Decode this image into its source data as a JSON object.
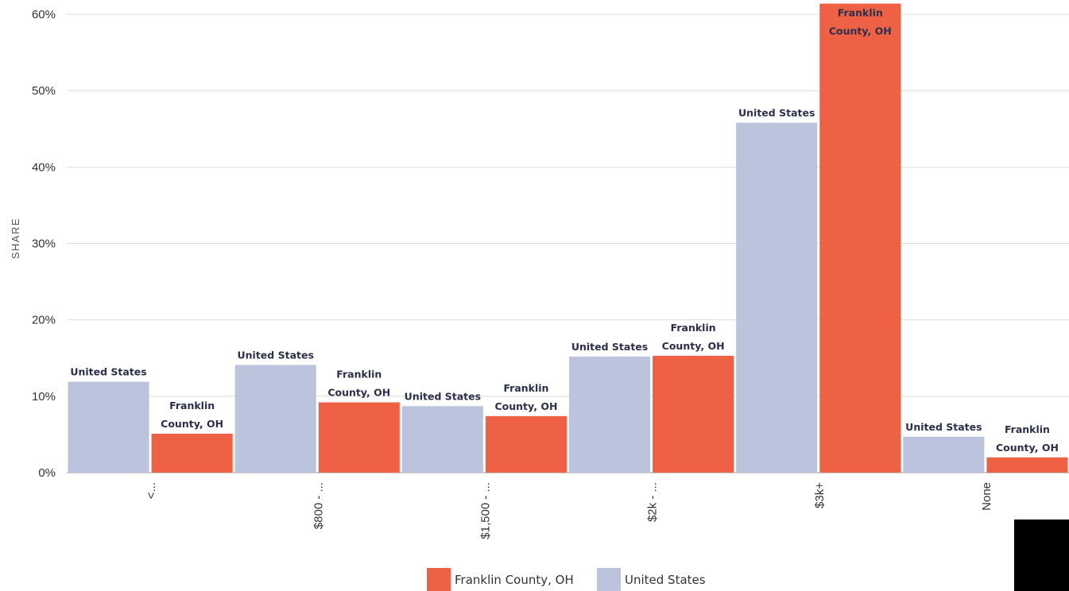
{
  "chart_data": {
    "type": "bar",
    "ylabel": "SHARE",
    "ylim": [
      0,
      60
    ],
    "yticks": [
      0,
      10,
      20,
      30,
      40,
      50,
      60
    ],
    "ytick_labels": [
      "0%",
      "10%",
      "20%",
      "30%",
      "40%",
      "50%",
      "60%"
    ],
    "grid": true,
    "legend_position": "bottom-center",
    "categories": [
      "<...",
      "$800 - ...",
      "$1,500 - ...",
      "$2k - ...",
      "$3k+",
      "None"
    ],
    "series": [
      {
        "name": "United States",
        "color": "#bcc3dc",
        "values": [
          11.9,
          14.1,
          8.7,
          15.2,
          45.8,
          4.7
        ],
        "labels": [
          "United States",
          "United States",
          "United States",
          "United States",
          "United States",
          "United States"
        ]
      },
      {
        "name": "Franklin County, OH",
        "color": "#ef6145",
        "values": [
          5.1,
          9.2,
          7.4,
          15.3,
          61.4,
          2.0
        ],
        "labels": [
          "Franklin County, OH",
          "Franklin County, OH",
          "Franklin County, OH",
          "Franklin County, OH",
          "Franklin County, OH",
          "Franklin County, OH"
        ]
      }
    ],
    "legend": [
      {
        "name": "Franklin County, OH",
        "color": "#ef6145"
      },
      {
        "name": "United States",
        "color": "#bcc3dc"
      }
    ]
  }
}
